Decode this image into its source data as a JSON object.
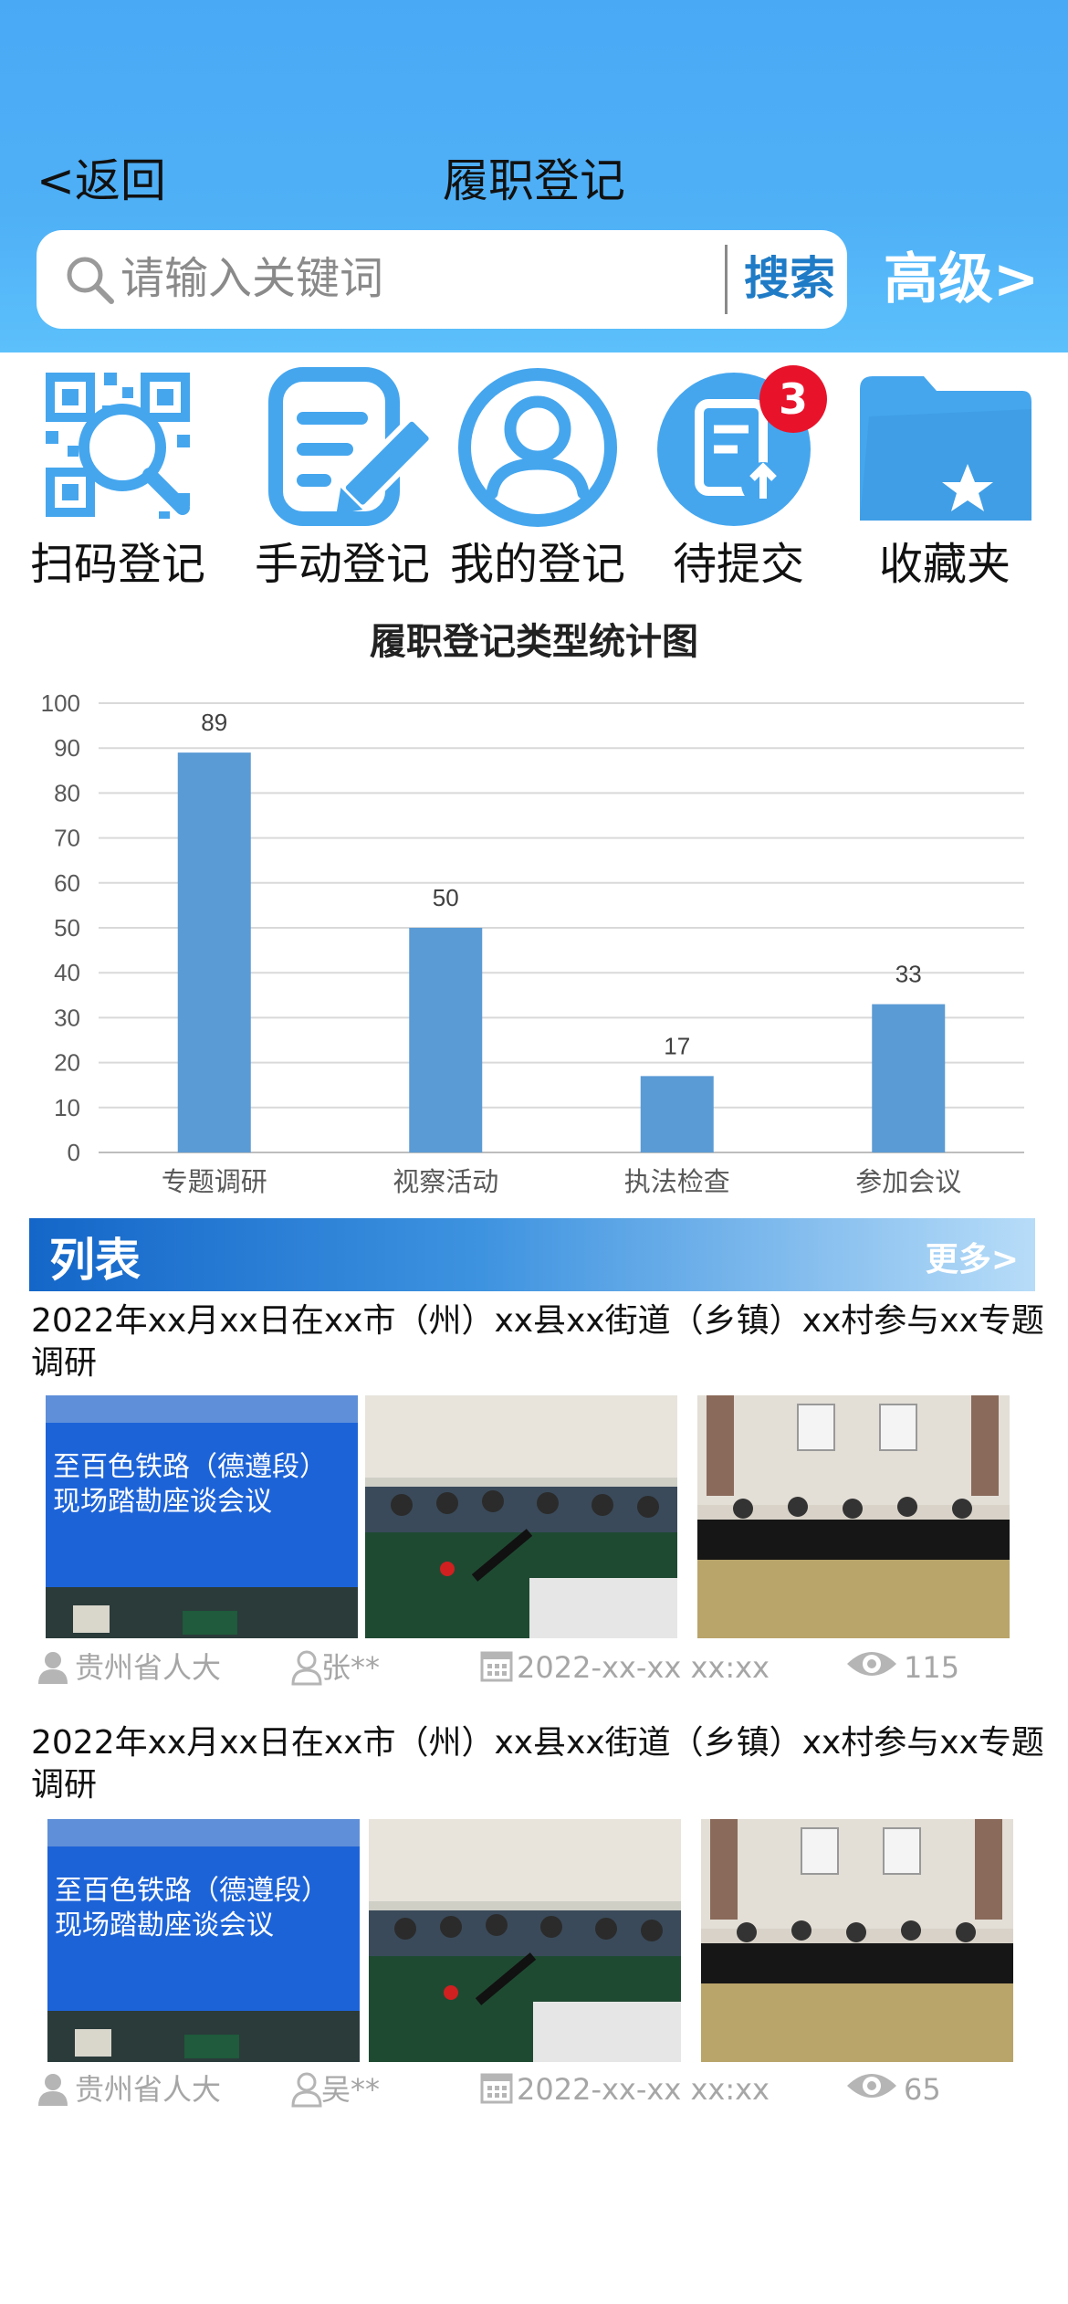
{
  "header": {
    "back_label": "<返回",
    "title": "履职登记"
  },
  "search": {
    "placeholder": "请输入关键词",
    "button_label": "搜索",
    "advanced_label": "高级>"
  },
  "menu": {
    "items": [
      {
        "label": "扫码登记",
        "icon": "qr-scan-icon"
      },
      {
        "label": "手动登记",
        "icon": "edit-document-icon"
      },
      {
        "label": "我的登记",
        "icon": "user-profile-icon"
      },
      {
        "label": "待提交",
        "icon": "upload-document-icon",
        "badge": "3"
      },
      {
        "label": "收藏夹",
        "icon": "favorite-folder-icon"
      }
    ]
  },
  "colors": {
    "accent": "#4aa9f5",
    "icon_blue": "#45a6ee",
    "bar": "#5b9bd5",
    "badge": "#e8132b"
  },
  "chart_data": {
    "type": "bar",
    "title": "履职登记类型统计图",
    "categories": [
      "专题调研",
      "视察活动",
      "执法检查",
      "参加会议"
    ],
    "values": [
      89,
      50,
      17,
      33
    ],
    "ylim": [
      0,
      100
    ],
    "yticks": [
      "0",
      "10",
      "20",
      "30",
      "40",
      "50",
      "60",
      "70",
      "80",
      "90",
      "100"
    ],
    "grid": true,
    "legend": "none"
  },
  "list": {
    "title": "列表",
    "more_label": "更多>",
    "items": [
      {
        "title": "2022年xx月xx日在xx市（州）xx县xx街道（乡镇）xx村参与xx专题调研",
        "org": "贵州省人大",
        "person": "张**",
        "datetime": "2022-xx-xx  xx:xx",
        "views": "115",
        "banner_text_1": "至百色铁路（德遵段）",
        "banner_text_2": "现场踏勘座谈会议"
      },
      {
        "title": "2022年xx月xx日在xx市（州）xx县xx街道（乡镇）xx村参与xx专题调研",
        "org": "贵州省人大",
        "person": "吴**",
        "datetime": "2022-xx-xx  xx:xx",
        "views": "65",
        "banner_text_1": "至百色铁路（德遵段）",
        "banner_text_2": "现场踏勘座谈会议"
      }
    ]
  }
}
